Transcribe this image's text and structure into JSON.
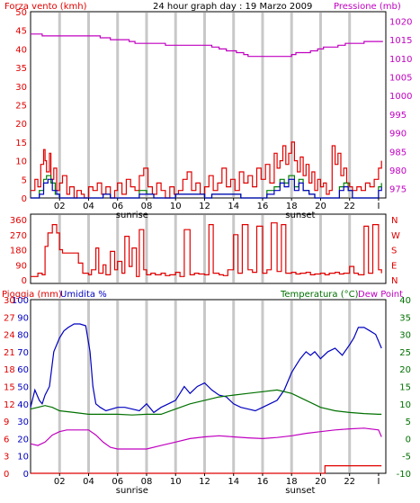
{
  "header": {
    "title": "24 hour graph day : 19 Marzo 2009",
    "left_label": "Forza vento (kmh)",
    "right_label": "Pressione (mb)"
  },
  "colors": {
    "red": "#e00000",
    "green": "#008000",
    "blue": "#0000c0",
    "magenta": "#c000c0",
    "dark_green": "#007000",
    "grid": "#c8c8c8",
    "border": "#000000"
  },
  "x_axis": {
    "ticks": [
      "02",
      "04",
      "06",
      "08",
      "10",
      "12",
      "14",
      "16",
      "18",
      "20",
      "22",
      "I"
    ],
    "tick_hours": [
      2,
      4,
      6,
      8,
      10,
      12,
      14,
      16,
      18,
      20,
      22,
      24
    ],
    "sunrise_label": "sunrise",
    "sunrise_hour": 7,
    "sunset_label": "sunset",
    "sunset_hour": 18.6,
    "grid_hours": [
      2,
      4,
      6,
      8,
      10,
      12,
      14,
      16,
      18,
      20,
      22
    ]
  },
  "chart_data": [
    {
      "type": "line",
      "panel": "wind_pressure",
      "x_range": [
        0,
        24.5
      ],
      "left_axis": {
        "ticks": [
          "50",
          "45",
          "40",
          "35",
          "30",
          "25",
          "20",
          "15",
          "10",
          "5",
          "0"
        ],
        "range": [
          0,
          50
        ]
      },
      "right_axis": {
        "ticks": [
          "1020",
          "1015",
          "1010",
          "1005",
          "1000",
          "995",
          "990",
          "985",
          "980",
          "975"
        ],
        "range": [
          972.5,
          1022.5
        ]
      },
      "series": [
        {
          "color_key": "magenta",
          "axis": "right",
          "x": [
            0,
            0.4,
            0.8,
            1.2,
            4.0,
            4.8,
            5.5,
            6.8,
            7.2,
            8.8,
            9.3,
            12.0,
            12.5,
            13.0,
            13.5,
            14.2,
            14.7,
            15.0,
            17.5,
            18.0,
            18.3,
            19.3,
            19.8,
            20.2,
            20.8,
            21.2,
            21.7,
            22.2,
            23.0,
            24.0,
            24.3
          ],
          "y": [
            1016.5,
            1016.5,
            1016,
            1016,
            1016,
            1015.5,
            1015,
            1014.5,
            1014,
            1014,
            1013.5,
            1013.5,
            1013,
            1012.5,
            1012,
            1011.5,
            1011,
            1010.5,
            1010.5,
            1011,
            1011.5,
            1012,
            1012.5,
            1013,
            1013,
            1013.5,
            1014,
            1014,
            1014.5,
            1014.5,
            1014.5
          ]
        },
        {
          "color_key": "red",
          "axis": "left",
          "x": [
            0,
            0.3,
            0.5,
            0.7,
            0.9,
            1.0,
            1.1,
            1.3,
            1.4,
            1.6,
            1.8,
            2.0,
            2.2,
            2.5,
            2.7,
            3.0,
            3.2,
            3.5,
            3.7,
            4.0,
            4.3,
            4.6,
            4.9,
            5.2,
            5.5,
            5.8,
            6.0,
            6.3,
            6.6,
            6.9,
            7.2,
            7.5,
            7.8,
            8.1,
            8.4,
            8.7,
            9.0,
            9.3,
            9.6,
            9.9,
            10.2,
            10.5,
            10.8,
            11.1,
            11.4,
            11.7,
            12.0,
            12.3,
            12.6,
            12.9,
            13.2,
            13.5,
            13.8,
            14.1,
            14.4,
            14.7,
            15.0,
            15.3,
            15.6,
            15.9,
            16.2,
            16.5,
            16.8,
            17.0,
            17.2,
            17.4,
            17.6,
            17.8,
            18.0,
            18.2,
            18.4,
            18.6,
            18.8,
            19.0,
            19.2,
            19.4,
            19.6,
            19.8,
            20.0,
            20.2,
            20.4,
            20.6,
            20.8,
            21.0,
            21.2,
            21.4,
            21.6,
            21.8,
            22.0,
            22.2,
            22.5,
            22.8,
            23.1,
            23.4,
            23.7,
            24.0,
            24.2
          ],
          "y": [
            2,
            5,
            3,
            9,
            13,
            10,
            7,
            12,
            5,
            8,
            2,
            4,
            6,
            1,
            3,
            0,
            2,
            1,
            0,
            3,
            2,
            4,
            1,
            3,
            0,
            2,
            4,
            1,
            5,
            3,
            2,
            6,
            8,
            3,
            1,
            4,
            2,
            0,
            3,
            1,
            2,
            5,
            7,
            2,
            4,
            1,
            3,
            6,
            2,
            4,
            8,
            3,
            5,
            2,
            7,
            4,
            6,
            3,
            8,
            5,
            9,
            4,
            12,
            8,
            10,
            14,
            9,
            12,
            15,
            10,
            7,
            11,
            6,
            9,
            4,
            7,
            2,
            5,
            3,
            4,
            1,
            2,
            14,
            9,
            12,
            6,
            8,
            4,
            3,
            2,
            3,
            2,
            4,
            3,
            5,
            8,
            10
          ]
        },
        {
          "color_key": "green",
          "axis": "left",
          "x": [
            0,
            0.6,
            0.9,
            1.1,
            1.4,
            1.7,
            2.0,
            4.5,
            5.0,
            5.5,
            7.0,
            7.5,
            8.0,
            8.5,
            9.5,
            10.0,
            12.0,
            12.5,
            14.5,
            15.0,
            16.3,
            16.8,
            17.2,
            17.5,
            17.8,
            18.2,
            18.5,
            18.8,
            19.2,
            19.6,
            20.5,
            21.0,
            21.3,
            21.6,
            21.9,
            22.2,
            23.5,
            24.0,
            24.2
          ],
          "y": [
            0,
            2,
            5,
            6,
            4,
            1,
            0,
            0,
            1,
            0,
            0,
            2,
            1,
            0,
            0,
            1,
            0,
            1,
            0,
            0,
            2,
            3,
            5,
            4,
            6,
            3,
            5,
            2,
            1,
            0,
            0,
            0,
            3,
            4,
            2,
            0,
            0,
            3,
            4
          ]
        },
        {
          "color_key": "blue",
          "axis": "left",
          "x": [
            0,
            0.6,
            0.9,
            1.2,
            1.5,
            1.8,
            2.0,
            4.5,
            5.0,
            5.5,
            7.0,
            7.5,
            8.0,
            8.5,
            9.5,
            10.0,
            12.0,
            12.5,
            14.5,
            15.0,
            16.3,
            16.8,
            17.2,
            17.5,
            17.8,
            18.2,
            18.5,
            18.8,
            19.2,
            19.6,
            20.5,
            21.0,
            21.3,
            21.6,
            21.9,
            22.2,
            23.5,
            24.0,
            24.2
          ],
          "y": [
            0,
            1,
            4,
            5,
            2,
            1,
            0,
            0,
            1,
            0,
            0,
            1,
            1,
            0,
            0,
            1,
            0,
            1,
            0,
            0,
            1,
            2,
            4,
            3,
            5,
            2,
            4,
            2,
            1,
            0,
            0,
            0,
            2,
            3,
            2,
            0,
            0,
            2,
            3
          ]
        }
      ]
    },
    {
      "type": "line",
      "panel": "wind_direction",
      "x_range": [
        0,
        24.5
      ],
      "left_axis": {
        "ticks": [
          "360",
          "270",
          "180",
          "90",
          "0"
        ],
        "range": [
          0,
          360
        ]
      },
      "right_axis": {
        "ticks": [
          "N",
          "W",
          "S",
          "E",
          "N"
        ]
      },
      "series": [
        {
          "color_key": "red",
          "x": [
            0,
            0.5,
            0.8,
            1.0,
            1.2,
            1.5,
            1.8,
            2.0,
            2.2,
            2.5,
            2.8,
            3.0,
            3.3,
            3.6,
            4.0,
            4.2,
            4.5,
            4.7,
            5.0,
            5.2,
            5.5,
            5.8,
            6.0,
            6.3,
            6.5,
            6.8,
            7.0,
            7.3,
            7.5,
            7.8,
            8.0,
            8.3,
            8.6,
            9.0,
            9.3,
            9.6,
            10.0,
            10.3,
            10.6,
            11.0,
            11.3,
            11.6,
            12.0,
            12.3,
            12.6,
            13.0,
            13.3,
            13.6,
            14.0,
            14.3,
            14.6,
            15.0,
            15.3,
            15.6,
            16.0,
            16.3,
            16.6,
            17.0,
            17.3,
            17.6,
            18.0,
            18.3,
            18.6,
            19.0,
            19.3,
            19.6,
            20.0,
            20.3,
            20.6,
            21.0,
            21.3,
            21.6,
            22.0,
            22.3,
            22.6,
            23.0,
            23.3,
            23.6,
            24.0,
            24.2
          ],
          "y": [
            20,
            40,
            30,
            200,
            280,
            330,
            280,
            180,
            160,
            160,
            160,
            160,
            100,
            40,
            30,
            60,
            190,
            40,
            90,
            30,
            170,
            60,
            110,
            40,
            260,
            80,
            190,
            20,
            300,
            60,
            30,
            40,
            30,
            40,
            25,
            30,
            45,
            20,
            300,
            30,
            40,
            35,
            30,
            330,
            40,
            30,
            25,
            60,
            270,
            40,
            330,
            60,
            45,
            320,
            40,
            60,
            340,
            50,
            330,
            40,
            45,
            35,
            40,
            45,
            30,
            35,
            40,
            30,
            40,
            45,
            35,
            40,
            80,
            40,
            30,
            320,
            40,
            330,
            60,
            40
          ]
        }
      ]
    },
    {
      "type": "line",
      "panel": "rain_humidity_temperature",
      "x_range": [
        0,
        24.5
      ],
      "left_axis": {
        "ticks_humidity": [
          "100",
          "90",
          "80",
          "70",
          "60",
          "50",
          "40",
          "30",
          "20",
          "10",
          "0"
        ],
        "ticks_rain": [
          "30",
          "27",
          "24",
          "21",
          "18",
          "15",
          "12",
          "9",
          "6",
          "3",
          "0"
        ]
      },
      "right_axis": {
        "ticks": [
          "40",
          "35",
          "30",
          "25",
          "20",
          "15",
          "10",
          "5",
          "0",
          "-5",
          "-10"
        ],
        "range": [
          -10,
          40
        ]
      },
      "labels": {
        "rain": "Pioggia (mm)",
        "humidity": "Umidita %",
        "temperature": "Temperatura (°C)",
        "dew_point": "Dew Point"
      },
      "series": [
        {
          "color_key": "blue",
          "axis": "humidity",
          "x": [
            0,
            0.3,
            0.6,
            0.8,
            1.0,
            1.3,
            1.6,
            2.0,
            2.3,
            2.6,
            3.0,
            3.4,
            3.8,
            4.1,
            4.3,
            4.5,
            4.8,
            5.2,
            5.6,
            6.0,
            6.5,
            7.0,
            7.5,
            8.0,
            8.5,
            9.0,
            9.5,
            10.0,
            10.3,
            10.6,
            11.0,
            11.5,
            12.0,
            12.5,
            13.0,
            13.5,
            14.0,
            14.5,
            15.0,
            15.5,
            16.0,
            16.5,
            17.0,
            17.5,
            18.0,
            18.3,
            18.6,
            19.0,
            19.3,
            19.6,
            20.0,
            20.5,
            21.0,
            21.5,
            22.0,
            22.3,
            22.6,
            23.0,
            23.4,
            23.8,
            24.2
          ],
          "y": [
            38,
            48,
            42,
            40,
            45,
            50,
            70,
            78,
            82,
            84,
            86,
            86,
            85,
            70,
            50,
            40,
            38,
            36,
            37,
            38,
            38,
            37,
            36,
            40,
            35,
            38,
            40,
            42,
            46,
            50,
            46,
            50,
            52,
            48,
            45,
            44,
            40,
            38,
            37,
            36,
            38,
            40,
            42,
            48,
            58,
            62,
            66,
            70,
            68,
            70,
            66,
            70,
            72,
            68,
            74,
            78,
            84,
            84,
            82,
            80,
            72
          ]
        },
        {
          "color_key": "dark_green",
          "axis": "temperature",
          "x": [
            0,
            0.5,
            1.0,
            1.5,
            2.0,
            3.0,
            4.0,
            5.0,
            6.0,
            7.0,
            8.0,
            9.0,
            10.0,
            11.0,
            12.0,
            13.0,
            14.0,
            15.0,
            16.0,
            17.0,
            18.0,
            19.0,
            20.0,
            21.0,
            22.0,
            23.0,
            24.0,
            24.2
          ],
          "y": [
            8.5,
            9.0,
            9.5,
            9.0,
            8.0,
            7.5,
            7.0,
            7.0,
            7.0,
            6.8,
            7.0,
            7.0,
            8.5,
            10.0,
            11.0,
            12.0,
            12.5,
            13.0,
            13.5,
            14.0,
            13.0,
            11.0,
            9.0,
            8.0,
            7.5,
            7.2,
            7.0,
            7.0
          ]
        },
        {
          "color_key": "magenta",
          "axis": "temperature",
          "x": [
            0,
            0.5,
            1.0,
            1.5,
            2.0,
            2.5,
            3.0,
            4.0,
            4.5,
            5.0,
            5.5,
            6.0,
            7.0,
            8.0,
            9.0,
            10.0,
            11.0,
            12.0,
            13.0,
            14.0,
            15.0,
            16.0,
            17.0,
            18.0,
            19.0,
            20.0,
            21.0,
            22.0,
            23.0,
            24.0,
            24.2
          ],
          "y": [
            -1.5,
            -2.0,
            -1.0,
            1.0,
            2.0,
            2.5,
            2.5,
            2.5,
            1.0,
            -1.0,
            -2.5,
            -3.0,
            -3.0,
            -3.0,
            -2.0,
            -1.0,
            0.0,
            0.5,
            0.8,
            0.5,
            0.2,
            0.0,
            0.3,
            0.8,
            1.5,
            2.0,
            2.5,
            2.8,
            3.0,
            2.5,
            0.5
          ]
        },
        {
          "color_key": "red",
          "axis": "rain",
          "x": [
            0,
            20.3,
            20.3,
            24.2
          ],
          "y": [
            0,
            0,
            1.3,
            1.3
          ]
        }
      ]
    }
  ]
}
